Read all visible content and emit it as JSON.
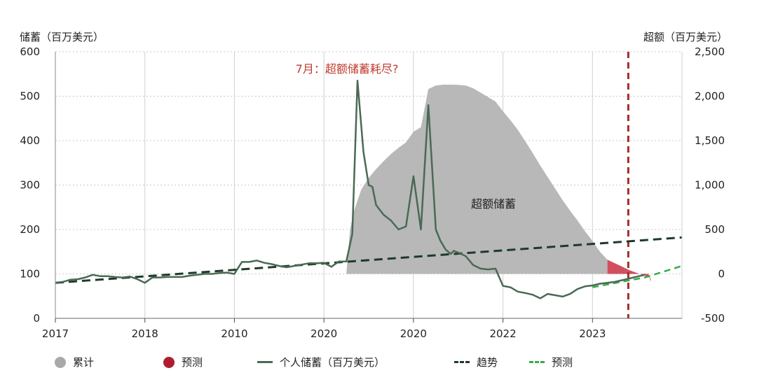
{
  "chart_data": {
    "type": "line",
    "left_axis_title": "储蓄（百万美元）",
    "right_axis_title": "超额（百万美元）",
    "x_ticks": [
      "2017",
      "2018",
      "2010",
      "2020",
      "2020",
      "2022",
      "2023"
    ],
    "ylim_left": [
      0,
      600
    ],
    "ylim_right": [
      -500,
      2500
    ],
    "yticks_left": [
      "0",
      "100",
      "200",
      "300",
      "400",
      "500",
      "600"
    ],
    "yticks_right": [
      "-500",
      "0",
      "500",
      "1,000",
      "1,500",
      "2,000",
      "2,500"
    ],
    "x_range": [
      0,
      84
    ],
    "grid": true,
    "annotation": "7月：超额储蓄耗尽?",
    "area_label": "超额储蓄",
    "colors": {
      "cumulative": "#b8b8b8",
      "forecast_area": "#d0505e",
      "savings": "#4a6a55",
      "trend": "#1e3a2a",
      "forecast_line": "#3aaa4a",
      "vline": "#a52a2a",
      "annotation": "#c0392b"
    },
    "series": [
      {
        "name": "个人储蓄（百万美元）",
        "axis": "left",
        "x": [
          0,
          1,
          2,
          3,
          4,
          5,
          6,
          7,
          8,
          9,
          10,
          11,
          12,
          13,
          14,
          15,
          16,
          17,
          18,
          19,
          20,
          21,
          22,
          23,
          24,
          25,
          26,
          27,
          28,
          29,
          30,
          31,
          32,
          33,
          34,
          35,
          36,
          37,
          38,
          39,
          39.8,
          40.5,
          41.3,
          42,
          42.5,
          43,
          44,
          45,
          46,
          47,
          48,
          49,
          50,
          51,
          51.6,
          52.3,
          53,
          53.4,
          54,
          55,
          56,
          57,
          58,
          59,
          60,
          61,
          62,
          63,
          64,
          65,
          66,
          67,
          68,
          69,
          70,
          71,
          72,
          73,
          74,
          75,
          76,
          77,
          78,
          79
        ],
        "y": [
          80,
          82,
          87,
          88,
          92,
          98,
          95,
          95,
          93,
          92,
          94,
          88,
          80,
          92,
          92,
          93,
          93,
          93,
          96,
          98,
          100,
          100,
          102,
          103,
          100,
          127,
          127,
          130,
          125,
          122,
          118,
          115,
          118,
          121,
          124,
          124,
          125,
          116,
          128,
          128,
          190,
          535,
          375,
          300,
          296,
          255,
          233,
          220,
          200,
          207,
          320,
          200,
          480,
          200,
          175,
          155,
          145,
          152,
          148,
          140,
          120,
          112,
          110,
          112,
          73,
          70,
          60,
          57,
          53,
          45,
          55,
          52,
          49,
          55,
          66,
          72,
          74,
          78,
          80,
          82,
          86,
          90,
          94,
          98
        ]
      },
      {
        "name": "趋势",
        "axis": "left",
        "x": [
          0,
          84
        ],
        "y": [
          80,
          182
        ]
      },
      {
        "name": "预测",
        "axis": "left",
        "x": [
          72,
          79,
          84
        ],
        "y": [
          70,
          92,
          118
        ]
      },
      {
        "name": "累计",
        "axis": "right",
        "x": [
          39,
          39.5,
          40,
          41,
          42,
          43,
          44,
          45,
          46,
          47,
          48,
          49,
          50,
          51,
          52,
          53,
          54,
          55,
          56,
          57,
          58,
          59,
          60,
          61,
          62,
          63,
          64,
          65,
          66,
          67,
          68,
          69,
          70,
          71,
          72,
          73,
          74
        ],
        "y": [
          0,
          500,
          700,
          950,
          1080,
          1180,
          1270,
          1350,
          1420,
          1480,
          1600,
          1650,
          2080,
          2120,
          2130,
          2130,
          2128,
          2120,
          2090,
          2040,
          1990,
          1940,
          1830,
          1730,
          1620,
          1490,
          1360,
          1220,
          1090,
          960,
          830,
          710,
          600,
          480,
          370,
          250,
          160
        ]
      },
      {
        "name": "预测",
        "axis": "right",
        "x": [
          74,
          75,
          76,
          77,
          78,
          79,
          79.8,
          79.8,
          79.5,
          74
        ],
        "y": [
          160,
          120,
          80,
          40,
          10,
          -20,
          -50,
          -90,
          0,
          0
        ]
      }
    ],
    "forecast_vline_x": 76.8,
    "legend": [
      {
        "label": "累计",
        "kind": "dot",
        "color": "#a9a9a9"
      },
      {
        "label": "预测",
        "kind": "dot",
        "color": "#b01c2e"
      },
      {
        "label": "个人储蓄（百万美元）",
        "kind": "line",
        "color": "#4a6a55",
        "style": "solid"
      },
      {
        "label": "趋势",
        "kind": "line",
        "color": "#1e3a2a",
        "style": "dashed"
      },
      {
        "label": "预测",
        "kind": "line",
        "color": "#3aaa4a",
        "style": "dashed"
      }
    ]
  }
}
